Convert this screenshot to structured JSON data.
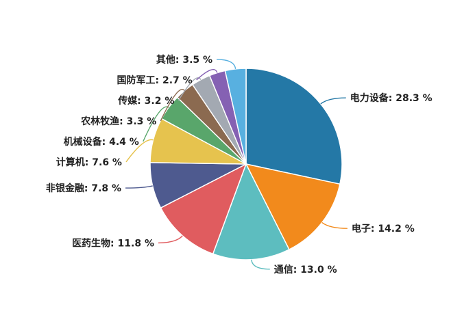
{
  "chart_data": {
    "type": "pie",
    "title": "",
    "slices": [
      {
        "label": "电力设备",
        "value": 28.3,
        "color": "#2478a6"
      },
      {
        "label": "电子",
        "value": 14.2,
        "color": "#f28a1c"
      },
      {
        "label": "通信",
        "value": 13.0,
        "color": "#5dbdbf"
      },
      {
        "label": "医药生物",
        "value": 11.8,
        "color": "#e05c5f"
      },
      {
        "label": "非银金融",
        "value": 7.8,
        "color": "#4e5a8f"
      },
      {
        "label": "计算机",
        "value": 7.6,
        "color": "#e6c34e"
      },
      {
        "label": "机械设备",
        "value": 4.4,
        "color": "#59a66b"
      },
      {
        "label": "农林牧渔",
        "value": 3.3,
        "color": "#8b6a50"
      },
      {
        "label": "传媒",
        "value": 3.2,
        "color": "#a3a9b2"
      },
      {
        "label": "国防军工",
        "value": 2.7,
        "color": "#8561b3"
      },
      {
        "label": "其他",
        "value": 3.5,
        "color": "#58b0e0"
      }
    ],
    "value_format": "{label}: {value} %",
    "start_angle": "12 o'clock",
    "direction": "clockwise",
    "legend": "none (labels on leader lines)"
  }
}
